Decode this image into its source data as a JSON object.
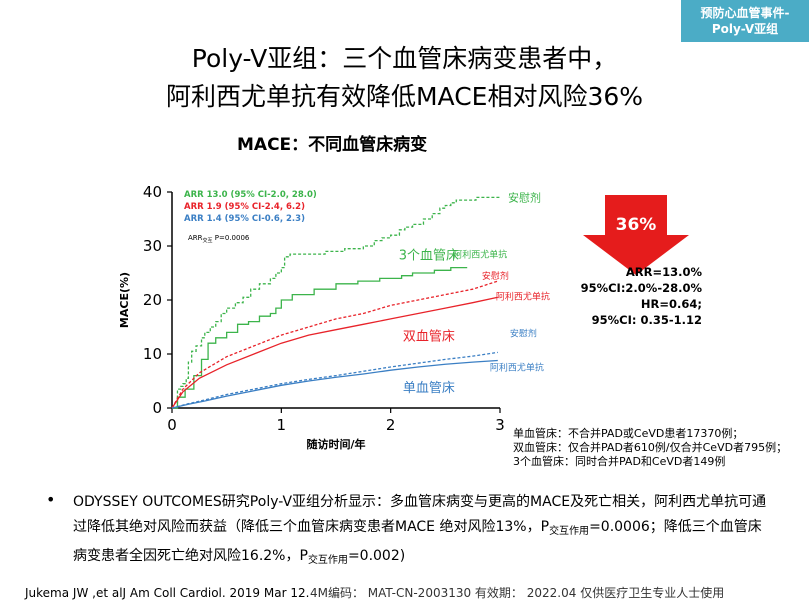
{
  "corner_tag": [
    "预防心血管事件-",
    "Poly-V亚组"
  ],
  "title_lines": [
    "Poly-V亚组：三个血管床病变患者中，",
    "阿利西尤单抗有效降低MACE相对风险36%"
  ],
  "reduction_label": "36%",
  "stats_lines": [
    "ARR=13.0%",
    "95%CI:2.0%-28.0%",
    "HR=0.64;",
    "95%CI: 0.35-1.12"
  ],
  "definitions": [
    "单血管床：不合并PAD或CeVD患者17370例；",
    "双血管床：仅合并PAD者610例/仅合并CeVD者795例；",
    "3个血管床：同时合并PAD和CeVD者149例"
  ],
  "summary": {
    "bullet": "•",
    "part1": "ODYSSEY OUTCOMES研究Poly-V亚组分析显示：多血管床病变与更高的MACE及死亡相关，阿利西尤单抗可通过降低其绝对风险而获益（降低三个血管床病变患者MACE 绝对风险13%，",
    "p1_label": "P",
    "p1_sub": "交互作用",
    "part2": "=0.0006；降低三个血管床病变患者全因死亡绝对风险16.2%，",
    "p2_label": "P",
    "p2_sub": "交互作用",
    "part3": "=0.002)"
  },
  "footer": {
    "reference": "Jukema JW ,et alJ Am Coll Cardiol. 2019 Mar 12.",
    "meta": "4M编码：   MAT-CN-2003130   有效期：  2022.04   仅供医疗卫生专业人士使用"
  },
  "colors": {
    "green": "#3cb44b",
    "red": "#e8232a",
    "blue": "#3b7fc4",
    "arrow": "#e51c1c",
    "tag": "#4bacc6"
  },
  "chart_data": {
    "type": "line",
    "title": "MACE：不同血管床病变",
    "xlabel": "随访时间/年",
    "ylabel": "MACE(%)",
    "xlim": [
      0,
      3
    ],
    "ylim": [
      0,
      40
    ],
    "xticks": [
      0,
      1,
      2,
      3
    ],
    "yticks": [
      0,
      10,
      20,
      30,
      40
    ],
    "grid": false,
    "legend": {
      "position": "top-left",
      "entries": [
        {
          "text": "ARR 13.0 (95% CI-2.0, 28.0)",
          "color": "#3cb44b"
        },
        {
          "text": "ARR 1.9 (95% CI-2.4, 6.2)",
          "color": "#e8232a"
        },
        {
          "text": "ARR 1.4 (95% CI-0.6, 2.3)",
          "color": "#3b7fc4"
        }
      ],
      "p_value": {
        "prefix": "ARR",
        "sub": "交互",
        "suffix": " P=0.0006"
      }
    },
    "group_labels": [
      {
        "text": "3个血管床",
        "color": "#3cb44b",
        "x": 2.35,
        "y": 27.5
      },
      {
        "text": "双血管床",
        "color": "#e8232a",
        "x": 2.35,
        "y": 12.5
      },
      {
        "text": "单血管床",
        "color": "#3b7fc4",
        "x": 2.35,
        "y": 3.0
      }
    ],
    "series": [
      {
        "name": "安慰剂",
        "group": "3个血管床",
        "color": "#3cb44b",
        "style": "dashed",
        "step": true,
        "x": [
          0,
          0.05,
          0.08,
          0.1,
          0.13,
          0.15,
          0.18,
          0.22,
          0.27,
          0.3,
          0.35,
          0.4,
          0.45,
          0.5,
          0.58,
          0.65,
          0.72,
          0.8,
          0.9,
          0.95,
          1.0,
          1.03,
          1.08,
          1.4,
          1.58,
          1.75,
          1.85,
          1.92,
          2.0,
          2.08,
          2.13,
          2.2,
          2.3,
          2.38,
          2.45,
          2.5,
          2.55,
          2.6,
          2.68,
          2.78,
          2.85,
          3.0
        ],
        "y": [
          0,
          3.5,
          4.0,
          4.5,
          5.5,
          8.5,
          10.5,
          11.5,
          13.0,
          14.0,
          15.0,
          16.0,
          17.5,
          18.5,
          19.5,
          20.5,
          22.0,
          23.0,
          24.0,
          25.0,
          26.0,
          28.0,
          28.5,
          29.0,
          29.5,
          30.0,
          31.0,
          31.5,
          32.0,
          33.0,
          33.5,
          34.0,
          35.0,
          36.0,
          37.0,
          37.5,
          38.0,
          38.5,
          38.5,
          39.0,
          39.0,
          39.0
        ]
      },
      {
        "name": "阿利西尤单抗",
        "group": "3个血管床",
        "color": "#3cb44b",
        "style": "solid",
        "step": true,
        "x": [
          0,
          0.05,
          0.12,
          0.2,
          0.27,
          0.33,
          0.4,
          0.5,
          0.6,
          0.7,
          0.8,
          0.9,
          0.95,
          1.0,
          1.1,
          1.3,
          1.5,
          1.7,
          1.9,
          2.1,
          2.2,
          2.4,
          2.55,
          2.7
        ],
        "y": [
          0,
          2.0,
          3.5,
          6.0,
          9.0,
          12.0,
          13.0,
          14.0,
          15.5,
          16.0,
          17.0,
          17.5,
          18.5,
          20.0,
          21.0,
          22.0,
          23.0,
          23.5,
          24.0,
          24.5,
          25.0,
          25.5,
          26.0,
          26.0
        ]
      },
      {
        "name": "安慰剂",
        "group": "双血管床",
        "color": "#e8232a",
        "style": "dashed",
        "step": false,
        "x": [
          0,
          0.1,
          0.25,
          0.5,
          0.75,
          1.0,
          1.25,
          1.5,
          1.75,
          2.0,
          2.25,
          2.5,
          2.75,
          2.98
        ],
        "y": [
          0,
          3.5,
          6.5,
          9.5,
          11.5,
          13.5,
          15.0,
          16.5,
          17.5,
          19.0,
          20.0,
          21.0,
          22.0,
          23.5
        ]
      },
      {
        "name": "阿利西尤单抗",
        "group": "双血管床",
        "color": "#e8232a",
        "style": "solid",
        "step": false,
        "x": [
          0,
          0.1,
          0.25,
          0.5,
          0.75,
          1.0,
          1.25,
          1.5,
          1.75,
          2.0,
          2.25,
          2.5,
          2.75,
          2.98
        ],
        "y": [
          0,
          3.0,
          5.5,
          8.0,
          10.0,
          12.0,
          13.5,
          14.5,
          15.5,
          16.5,
          17.5,
          18.5,
          19.5,
          20.5
        ]
      },
      {
        "name": "安慰剂",
        "group": "单血管床",
        "color": "#3b7fc4",
        "style": "dashed",
        "step": false,
        "x": [
          0,
          0.15,
          0.3,
          0.5,
          0.75,
          1.0,
          1.25,
          1.5,
          1.75,
          2.0,
          2.25,
          2.5,
          2.75,
          2.98
        ],
        "y": [
          0,
          0.8,
          1.5,
          2.5,
          3.5,
          4.5,
          5.3,
          6.0,
          6.8,
          7.6,
          8.3,
          9.0,
          9.6,
          10.3
        ]
      },
      {
        "name": "阿利西尤单抗",
        "group": "单血管床",
        "color": "#3b7fc4",
        "style": "solid",
        "step": false,
        "x": [
          0,
          0.15,
          0.3,
          0.5,
          0.75,
          1.0,
          1.25,
          1.5,
          1.75,
          2.0,
          2.25,
          2.5,
          2.75,
          2.98
        ],
        "y": [
          0,
          0.7,
          1.3,
          2.2,
          3.2,
          4.2,
          5.0,
          5.7,
          6.3,
          7.0,
          7.6,
          8.1,
          8.5,
          8.8
        ]
      }
    ]
  }
}
